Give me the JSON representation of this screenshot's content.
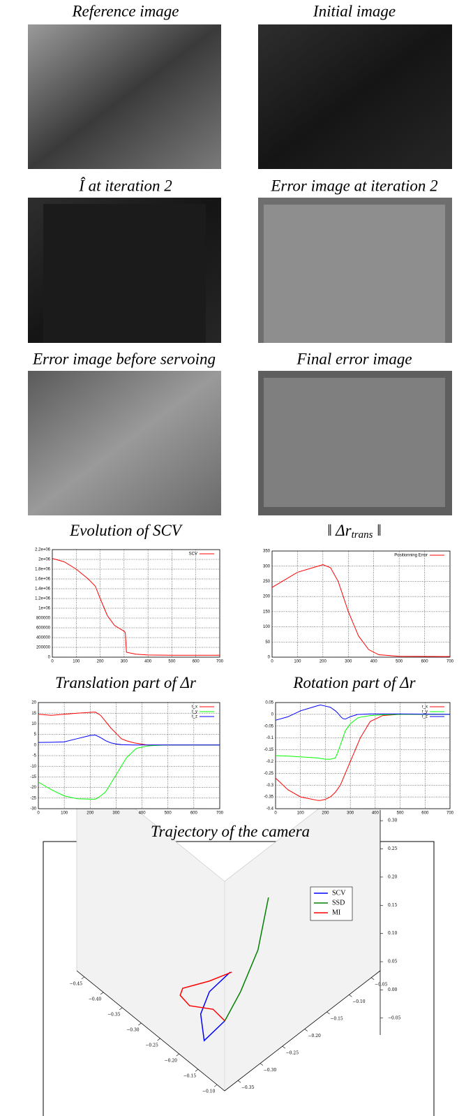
{
  "images": [
    {
      "title": "Reference image"
    },
    {
      "title": "Initial image"
    },
    {
      "title": "Î at iteration 2"
    },
    {
      "title": "Error image at iteration 2"
    },
    {
      "title": "Error image before servoing"
    },
    {
      "title": "Final error image"
    }
  ],
  "chart_data": [
    {
      "type": "line",
      "title": "Evolution of SCV",
      "x": [
        0,
        50,
        100,
        150,
        180,
        200,
        230,
        260,
        300,
        305,
        310,
        350,
        400,
        500,
        700
      ],
      "series": [
        {
          "name": "SCV",
          "color": "#ff0000",
          "values": [
            2020000,
            1950000,
            1800000,
            1600000,
            1450000,
            1200000,
            850000,
            650000,
            530000,
            500000,
            100000,
            60000,
            45000,
            40000,
            40000
          ]
        }
      ],
      "xlim": [
        0,
        700
      ],
      "xticks": [
        0,
        100,
        200,
        300,
        400,
        500,
        600,
        700
      ],
      "ylim": [
        0,
        2200000
      ],
      "yticks": [
        0,
        200000,
        400000,
        600000,
        800000,
        {
          "value": 1000000,
          "label": "1e+06"
        },
        {
          "value": 1200000,
          "label": "1.2e+06"
        },
        {
          "value": 1400000,
          "label": "1.4e+06"
        },
        {
          "value": 1600000,
          "label": "1.6e+06"
        },
        {
          "value": 1800000,
          "label": "1.8e+06"
        },
        {
          "value": 2000000,
          "label": "2e+06"
        },
        {
          "value": 2200000,
          "label": "2.2e+06"
        }
      ],
      "grid": true,
      "legend": "upper right"
    },
    {
      "type": "line",
      "title": "‖ Δr",
      "title_subscript": "trans",
      "title_suffix": " ‖",
      "x": [
        0,
        50,
        100,
        180,
        200,
        230,
        260,
        300,
        340,
        380,
        420,
        500,
        700
      ],
      "series": [
        {
          "name": "Positionning Error",
          "color": "#ff0000",
          "values": [
            230,
            255,
            280,
            300,
            305,
            295,
            250,
            150,
            70,
            25,
            8,
            3,
            2
          ]
        }
      ],
      "xlim": [
        0,
        700
      ],
      "xticks": [
        0,
        100,
        200,
        300,
        400,
        500,
        600,
        700
      ],
      "ylim": [
        0,
        350
      ],
      "yticks": [
        0,
        50,
        100,
        150,
        200,
        250,
        300,
        350
      ],
      "grid": true,
      "legend": "upper right"
    },
    {
      "type": "line",
      "title": "Translation part of Δr",
      "x": [
        0,
        50,
        100,
        150,
        200,
        220,
        240,
        260,
        280,
        300,
        320,
        340,
        370,
        380,
        420,
        430,
        500,
        700
      ],
      "series": [
        {
          "name": "t_x",
          "color": "#ff0000",
          "values": [
            14.5,
            14,
            14.5,
            15,
            15.4,
            15.5,
            14,
            11,
            8,
            5.5,
            3,
            2,
            1,
            0.8,
            0,
            0,
            0,
            0
          ]
        },
        {
          "name": "t_y",
          "color": "#00ff00",
          "values": [
            -17.5,
            -21,
            -24,
            -25.3,
            -25.5,
            -25.5,
            -24,
            -22,
            -18,
            -14,
            -10,
            -6,
            -2.5,
            -1.5,
            -0.5,
            -0.3,
            0,
            0
          ]
        },
        {
          "name": "t_z",
          "color": "#0000ff",
          "values": [
            1.2,
            1.3,
            1.5,
            3,
            4.5,
            4.7,
            3.5,
            2,
            1,
            0.5,
            0.2,
            0.1,
            0,
            0,
            0,
            0,
            0,
            0
          ]
        }
      ],
      "xlim": [
        0,
        700
      ],
      "xticks": [
        0,
        100,
        200,
        300,
        400,
        500,
        600,
        700
      ],
      "ylim": [
        -30,
        20
      ],
      "yticks": [
        -30,
        -25,
        -20,
        -15,
        -10,
        -5,
        0,
        5,
        10,
        15,
        20
      ],
      "grid": true,
      "legend": "upper right"
    },
    {
      "type": "line",
      "title": "Rotation part of Δr",
      "x": [
        0,
        50,
        100,
        170,
        180,
        200,
        220,
        240,
        250,
        260,
        270,
        280,
        300,
        330,
        340,
        380,
        430,
        500,
        700
      ],
      "series": [
        {
          "name": "r_x",
          "color": "#ff0000",
          "values": [
            -0.27,
            -0.32,
            -0.35,
            -0.365,
            -0.365,
            -0.36,
            -0.35,
            -0.33,
            -0.315,
            -0.3,
            -0.275,
            -0.25,
            -0.2,
            -0.125,
            -0.1,
            -0.03,
            -0.005,
            0,
            0
          ]
        },
        {
          "name": "r_y",
          "color": "#00ff00",
          "values": [
            -0.175,
            -0.177,
            -0.18,
            -0.185,
            -0.187,
            -0.19,
            -0.19,
            -0.185,
            -0.16,
            -0.13,
            -0.1,
            -0.07,
            -0.04,
            -0.015,
            -0.012,
            -0.005,
            -0.002,
            0,
            0
          ]
        },
        {
          "name": "r_z",
          "color": "#0000ff",
          "values": [
            -0.025,
            -0.01,
            0.015,
            0.037,
            0.04,
            0.035,
            0.03,
            0.015,
            0.005,
            -0.008,
            -0.018,
            -0.02,
            -0.01,
            0,
            0,
            0.002,
            0.002,
            0.002,
            0
          ]
        }
      ],
      "xlim": [
        0,
        700
      ],
      "xticks": [
        0,
        100,
        200,
        300,
        400,
        500,
        600,
        700
      ],
      "ylim": [
        -0.4,
        0.05
      ],
      "yticks": [
        -0.4,
        -0.35,
        -0.3,
        -0.25,
        -0.2,
        -0.15,
        -0.1,
        -0.05,
        0,
        0.05
      ],
      "grid": true,
      "legend": "upper right"
    },
    {
      "type": "line3d",
      "title": "Trajectory of the camera",
      "series": [
        {
          "name": "SCV",
          "color": "#0000ff",
          "x": [
            -0.131,
            -0.16,
            -0.169,
            -0.155,
            -0.144
          ],
          "y": [
            -0.324,
            -0.346,
            -0.358,
            -0.362,
            -0.325
          ],
          "z": [
            0.08,
            0.04,
            0.0,
            -0.04,
            -0.02
          ]
        },
        {
          "name": "SSD",
          "color": "#008000",
          "x": [
            -0.084,
            -0.08,
            -0.12,
            -0.144
          ],
          "y": [
            -0.278,
            -0.305,
            -0.31,
            -0.325
          ],
          "z": [
            0.22,
            0.14,
            0.04,
            -0.02
          ]
        },
        {
          "name": "MI",
          "color": "#ff0000",
          "x": [
            -0.129,
            -0.143,
            -0.2,
            -0.209,
            -0.197,
            -0.161,
            -0.144
          ],
          "y": [
            -0.322,
            -0.361,
            -0.372,
            -0.37,
            -0.359,
            -0.337,
            -0.325
          ],
          "z": [
            0.08,
            0.08,
            0.04,
            0.02,
            0.0,
            0.0,
            -0.02
          ]
        }
      ],
      "xlim": [
        -0.47,
        -0.08
      ],
      "ylim": [
        -0.38,
        -0.03
      ],
      "zlim": [
        -0.08,
        0.32
      ],
      "xticks": [
        {
          "value": -0.45,
          "label": "−0.45"
        },
        {
          "value": -0.4,
          "label": "−0.40"
        },
        {
          "value": -0.35,
          "label": "−0.35"
        },
        {
          "value": -0.3,
          "label": "−0.30"
        },
        {
          "value": -0.25,
          "label": "−0.25"
        },
        {
          "value": -0.2,
          "label": "−0.20"
        },
        {
          "value": -0.15,
          "label": "−0.15"
        },
        {
          "value": -0.1,
          "label": "−0.10"
        }
      ],
      "yticks": [
        {
          "value": -0.35,
          "label": "−0.35"
        },
        {
          "value": -0.3,
          "label": "−0.30"
        },
        {
          "value": -0.25,
          "label": "−0.25"
        },
        {
          "value": -0.2,
          "label": "−0.20"
        },
        {
          "value": -0.15,
          "label": "−0.15"
        },
        {
          "value": -0.1,
          "label": "−0.10"
        },
        {
          "value": -0.05,
          "label": "−0.05"
        }
      ],
      "zticks": [
        {
          "value": -0.05,
          "label": "−0.05"
        },
        {
          "value": 0,
          "label": "0.00"
        },
        0.05,
        {
          "value": 0.1,
          "label": "0.10"
        },
        0.15,
        {
          "value": 0.2,
          "label": "0.20"
        },
        0.25,
        {
          "value": 0.3,
          "label": "0.30"
        }
      ],
      "legend": "upper right"
    }
  ]
}
